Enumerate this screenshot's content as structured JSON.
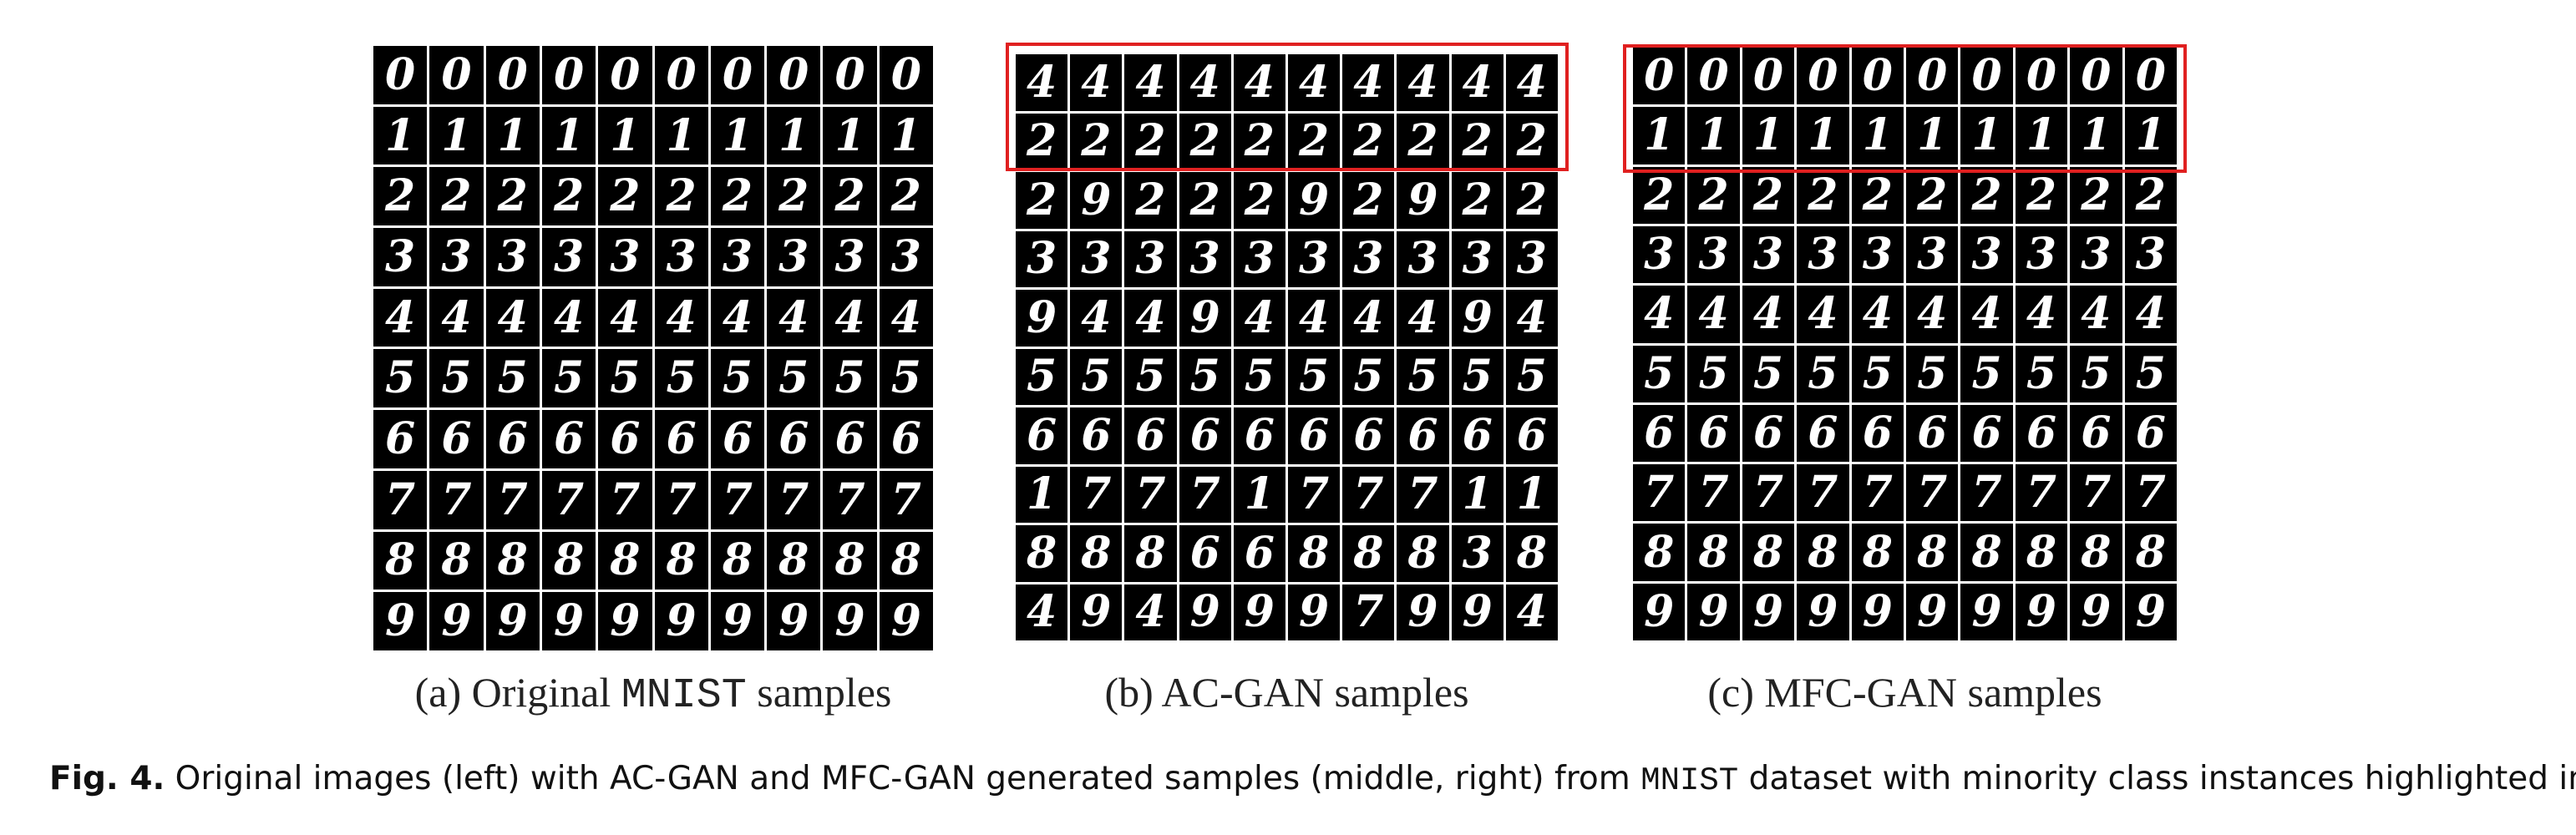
{
  "panels": [
    {
      "rows": [
        "0000000000",
        "1111111111",
        "2222222222",
        "3333333333",
        "4444444444",
        "5555555555",
        "6666666666",
        "7777777777",
        "8888888888",
        "9999999999"
      ],
      "caption": {
        "prefix": "(a) Original ",
        "code": "MNIST",
        "suffix": " samples"
      }
    },
    {
      "rows": [
        "4444444444",
        "2222222222",
        "2922292922",
        "3333333333",
        "9449444494",
        "5555555555",
        "6666666666",
        "1777177711",
        "8886688838",
        "4949997994"
      ],
      "caption": {
        "text": "(b) AC-GAN samples"
      }
    },
    {
      "rows": [
        "0000000000",
        "1111111111",
        "2222222222",
        "3333333333",
        "4444444444",
        "5555555555",
        "6666666666",
        "7777777777",
        "8888888888",
        "9999999999"
      ],
      "caption": {
        "text": "(c) MFC-GAN samples"
      }
    }
  ],
  "figure_caption": {
    "label": "Fig. 4.",
    "text_1": " Original images (left) with AC-GAN and MFC-GAN generated samples (middle, right) from ",
    "code": "MNIST",
    "text_2": " dataset with minority class instances highlighted in red."
  }
}
